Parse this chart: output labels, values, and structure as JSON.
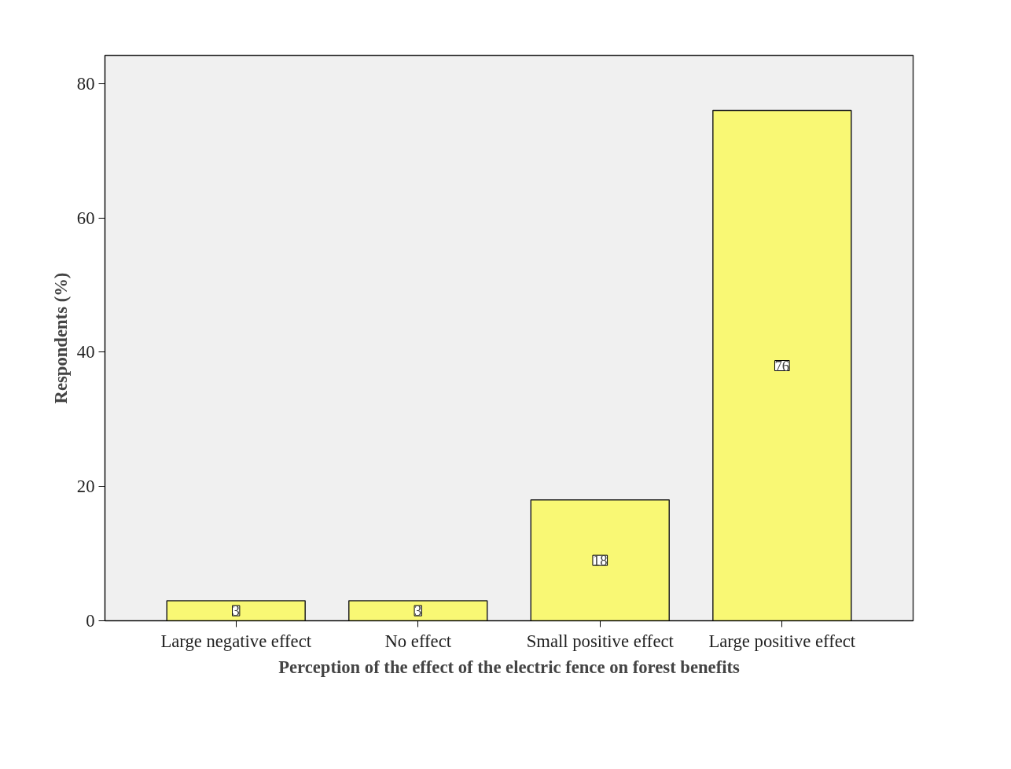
{
  "chart_data": {
    "type": "bar",
    "xlabel": "Perception of the effect of the electric fence on forest benefits",
    "ylabel": "Respondents (%)",
    "categories": [
      "Large negative effect",
      "No effect",
      "Small positive effect",
      "Large positive effect"
    ],
    "values": [
      3,
      3,
      18,
      76
    ],
    "color": "#f9f874",
    "data_labels": true,
    "ylim": [
      0,
      84.2
    ],
    "yticks": [
      0,
      20,
      40,
      60,
      80
    ],
    "grid": false
  }
}
